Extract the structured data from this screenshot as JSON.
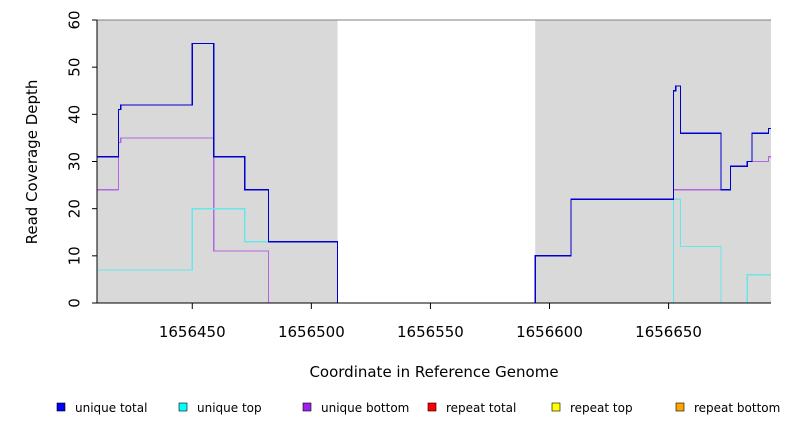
{
  "chart_data": {
    "type": "line",
    "title": "",
    "xlabel": "Coordinate in Reference Genome",
    "ylabel": "Read Coverage Depth",
    "xlim": [
      1656410,
      1656693
    ],
    "ylim": [
      0,
      60
    ],
    "xticks": [
      1656450,
      1656500,
      1656550,
      1656600,
      1656650
    ],
    "yticks": [
      0,
      10,
      20,
      30,
      40,
      50,
      60
    ],
    "shaded_regions": [
      {
        "x": [
          1656410,
          1656511
        ],
        "color": "#d9d9d9"
      },
      {
        "x": [
          1656594,
          1656693
        ],
        "color": "#d9d9d9"
      }
    ],
    "legend_position": "bottom",
    "series": [
      {
        "name": "unique total",
        "color": "#0000cc",
        "steps": [
          [
            1656410,
            31
          ],
          [
            1656419,
            41
          ],
          [
            1656420,
            42
          ],
          [
            1656450,
            55
          ],
          [
            1656459,
            31
          ],
          [
            1656472,
            24
          ],
          [
            1656482,
            13
          ],
          [
            1656511,
            0
          ],
          [
            1656594,
            10
          ],
          [
            1656609,
            22
          ],
          [
            1656652,
            45
          ],
          [
            1656653,
            46
          ],
          [
            1656655,
            36
          ],
          [
            1656672,
            24
          ],
          [
            1656676,
            29
          ],
          [
            1656683,
            30
          ],
          [
            1656685,
            36
          ],
          [
            1656692,
            37
          ],
          [
            1656693,
            37
          ]
        ]
      },
      {
        "name": "unique top",
        "color": "#66e8e8",
        "steps": [
          [
            1656410,
            7
          ],
          [
            1656450,
            20
          ],
          [
            1656472,
            13
          ],
          [
            1656482,
            13
          ],
          [
            1656511,
            0
          ],
          [
            1656594,
            0
          ],
          [
            1656609,
            0
          ],
          [
            1656652,
            22
          ],
          [
            1656655,
            12
          ],
          [
            1656672,
            0
          ],
          [
            1656683,
            6
          ],
          [
            1656693,
            6
          ]
        ]
      },
      {
        "name": "unique bottom",
        "color": "#b366e0",
        "steps": [
          [
            1656410,
            24
          ],
          [
            1656419,
            34
          ],
          [
            1656420,
            35
          ],
          [
            1656459,
            11
          ],
          [
            1656482,
            0
          ],
          [
            1656652,
            24
          ],
          [
            1656672,
            24
          ],
          [
            1656676,
            29
          ],
          [
            1656683,
            30
          ],
          [
            1656692,
            31
          ],
          [
            1656693,
            31
          ]
        ]
      },
      {
        "name": "repeat total",
        "color": "#e60000",
        "steps": [
          [
            1656410,
            0
          ],
          [
            1656693,
            0
          ]
        ]
      },
      {
        "name": "repeat top",
        "color": "#ffff00",
        "steps": [
          [
            1656410,
            0
          ],
          [
            1656693,
            0
          ]
        ]
      },
      {
        "name": "repeat bottom",
        "color": "#f0a000",
        "steps": [
          [
            1656410,
            0
          ],
          [
            1656693,
            0
          ]
        ]
      }
    ],
    "legend": [
      {
        "name": "unique total",
        "color": "#0000ff"
      },
      {
        "name": "unique top",
        "color": "#00ffff"
      },
      {
        "name": "unique bottom",
        "color": "#a020f0"
      },
      {
        "name": "repeat total",
        "color": "#ff0000"
      },
      {
        "name": "repeat top",
        "color": "#ffff00"
      },
      {
        "name": "repeat bottom",
        "color": "#ffa500"
      }
    ]
  }
}
